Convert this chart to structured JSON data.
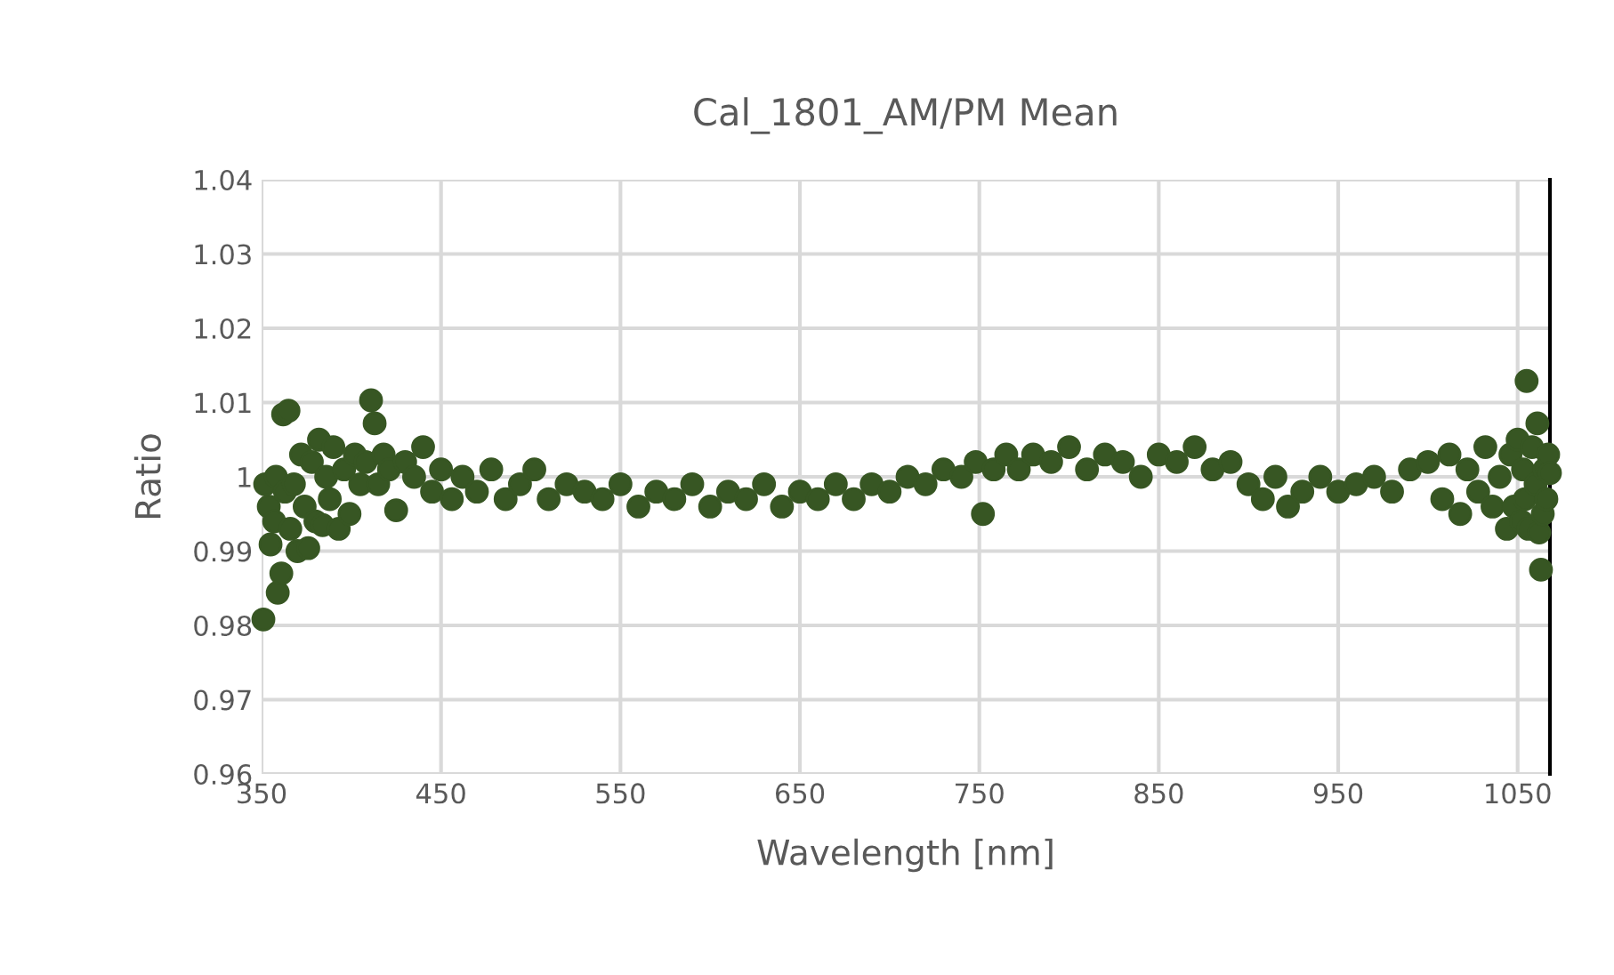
{
  "chart_data": {
    "type": "scatter",
    "title": "Cal_1801_AM/PM Mean",
    "xlabel": "Wavelength [nm]",
    "ylabel": "Ratio",
    "xlim": [
      350,
      1068
    ],
    "xticks": [
      350,
      450,
      550,
      650,
      750,
      850,
      950,
      1050
    ],
    "ylim": [
      0.96,
      1.04
    ],
    "yticks": [
      {
        "value": 0.96,
        "label": "0.96"
      },
      {
        "value": 0.97,
        "label": "0.97"
      },
      {
        "value": 0.98,
        "label": "0.98"
      },
      {
        "value": 0.99,
        "label": "0.99"
      },
      {
        "value": 1.0,
        "label": "1"
      },
      {
        "value": 1.01,
        "label": "1.01"
      },
      {
        "value": 1.02,
        "label": "1.02"
      },
      {
        "value": 1.03,
        "label": "1.03"
      },
      {
        "value": 1.04,
        "label": "1.04"
      }
    ],
    "grid": true,
    "marker": "circle",
    "series": [
      {
        "color": "#375623",
        "x": [
          351,
          352,
          354,
          355,
          357,
          358,
          359,
          361,
          362,
          363,
          365,
          366,
          368,
          370,
          372,
          374,
          376,
          378,
          380,
          382,
          384,
          386,
          388,
          390,
          393,
          396,
          399,
          402,
          405,
          408,
          411,
          413,
          415,
          418,
          421,
          425,
          430,
          435,
          440,
          445,
          450,
          456,
          462,
          470,
          478,
          486,
          494,
          502,
          510,
          520,
          530,
          540,
          550,
          560,
          570,
          580,
          590,
          600,
          610,
          620,
          630,
          640,
          650,
          660,
          670,
          680,
          690,
          700,
          710,
          720,
          730,
          740,
          748,
          752,
          758,
          765,
          772,
          780,
          790,
          800,
          810,
          820,
          830,
          840,
          850,
          860,
          870,
          880,
          890,
          900,
          908,
          915,
          922,
          930,
          940,
          950,
          960,
          970,
          980,
          990,
          1000,
          1008,
          1012,
          1018,
          1022,
          1028,
          1032,
          1036,
          1040,
          1044,
          1046,
          1048,
          1050,
          1052,
          1053,
          1054,
          1055,
          1056,
          1058,
          1060,
          1061,
          1062,
          1063,
          1064,
          1065,
          1066,
          1067,
          1068
        ],
        "values": [
          0.9808,
          0.999,
          0.996,
          0.9909,
          0.994,
          1.0,
          0.9844,
          0.987,
          1.0084,
          0.998,
          1.0089,
          0.993,
          0.999,
          0.99,
          1.003,
          0.996,
          0.9904,
          1.002,
          0.994,
          1.005,
          0.9935,
          1.0,
          0.997,
          1.004,
          0.993,
          1.001,
          0.995,
          1.003,
          0.999,
          1.002,
          1.0103,
          1.0072,
          0.999,
          1.003,
          1.001,
          0.9955,
          1.002,
          1.0,
          1.004,
          0.998,
          1.001,
          0.997,
          1.0,
          0.998,
          1.001,
          0.997,
          0.999,
          1.001,
          0.997,
          0.999,
          0.998,
          0.997,
          0.999,
          0.996,
          0.998,
          0.997,
          0.999,
          0.996,
          0.998,
          0.997,
          0.999,
          0.996,
          0.998,
          0.997,
          0.999,
          0.997,
          0.999,
          0.998,
          1.0,
          0.999,
          1.001,
          1.0,
          1.002,
          0.995,
          1.001,
          1.003,
          1.001,
          1.003,
          1.002,
          1.004,
          1.001,
          1.003,
          1.002,
          1.0,
          1.003,
          1.002,
          1.004,
          1.001,
          1.002,
          0.999,
          0.997,
          1.0,
          0.996,
          0.998,
          1.0,
          0.998,
          0.999,
          1.0,
          0.998,
          1.001,
          1.002,
          0.997,
          1.003,
          0.995,
          1.001,
          0.998,
          1.004,
          0.996,
          1.0,
          0.993,
          1.003,
          0.996,
          1.005,
          0.994,
          1.001,
          0.997,
          1.0129,
          0.993,
          1.004,
          0.999,
          1.0072,
          0.9925,
          0.9875,
          0.995,
          1.001,
          0.997,
          1.003,
          1.0005
        ]
      }
    ]
  }
}
